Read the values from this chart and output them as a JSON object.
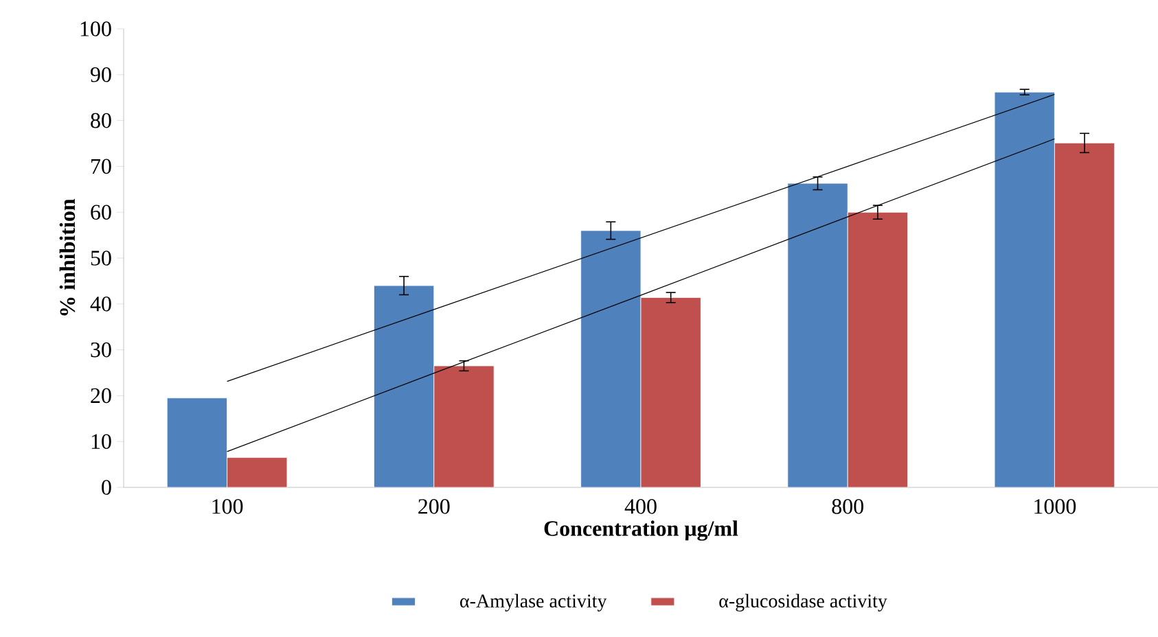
{
  "chart_data": {
    "type": "bar",
    "categories": [
      "100",
      "200",
      "400",
      "800",
      "1000"
    ],
    "xlabel": "Concentration μg/ml",
    "ylabel": "% inhibition",
    "ylim": [
      0,
      100
    ],
    "yticks": [
      0,
      10,
      20,
      30,
      40,
      50,
      60,
      70,
      80,
      90,
      100
    ],
    "legend": "bottom",
    "series": [
      {
        "name": "α-Amylase activity",
        "color": "#4f81bd",
        "values": [
          19.5,
          44.0,
          56.0,
          66.3,
          86.2
        ],
        "errors": [
          null,
          2.0,
          1.9,
          1.4,
          0.6
        ]
      },
      {
        "name": "α-glucosidase activity",
        "color": "#c0504d",
        "values": [
          6.5,
          26.5,
          41.4,
          60.0,
          75.1
        ],
        "errors": [
          null,
          1.1,
          1.1,
          1.5,
          2.1
        ]
      },
      {
        "type": "line",
        "color": "#000000",
        "values": [
          23.1,
          38.8,
          54.4,
          70.0,
          85.7
        ]
      },
      {
        "type": "line",
        "color": "#000000",
        "values": [
          7.8,
          24.9,
          41.9,
          59.0,
          76.0
        ]
      }
    ]
  }
}
